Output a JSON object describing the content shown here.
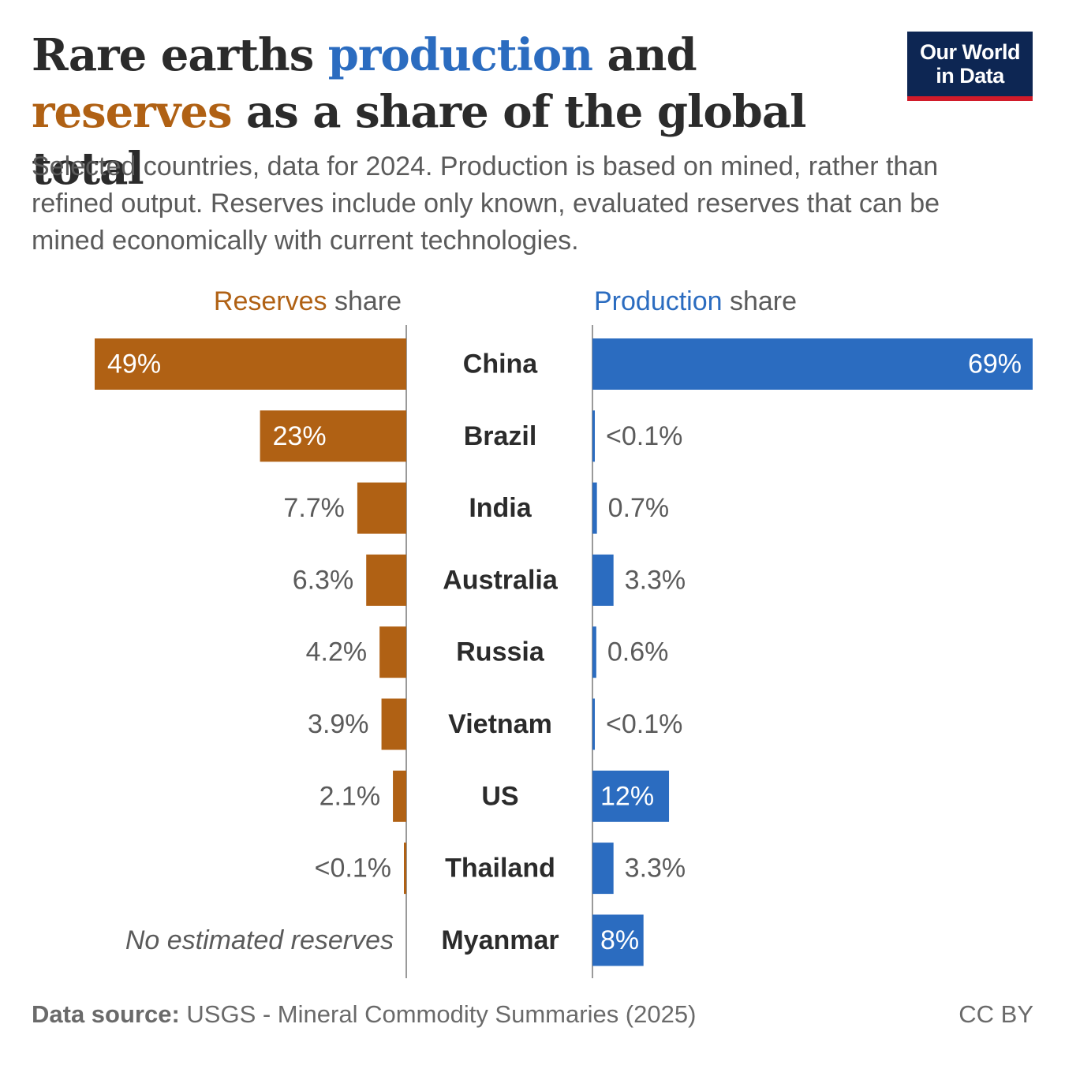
{
  "header": {
    "title_part1": "Rare earths ",
    "title_production": "production",
    "title_part2": " and ",
    "title_reserves": "reserves",
    "title_part3": " as a share of the global total",
    "subtitle": "Selected countries, data for 2024. Production is based on mined, rather than refined output. Reserves include only known, evaluated reserves that can be mined economically with current technologies."
  },
  "logo": {
    "line1": "Our World",
    "line2": "in Data"
  },
  "colors": {
    "reserves": "#b06114",
    "production": "#2b6cc0",
    "text": "#2b2b2b",
    "muted": "#5b5b5b",
    "axis": "#9a9a9a"
  },
  "chart_data": {
    "type": "bar",
    "orientation": "horizontal",
    "layout": "butterfly",
    "categories": [
      "China",
      "Brazil",
      "India",
      "Australia",
      "Russia",
      "Vietnam",
      "US",
      "Thailand",
      "Myanmar"
    ],
    "series": [
      {
        "name": "Reserves",
        "header_suffix": " share",
        "direction": "left",
        "values": [
          49,
          23,
          7.7,
          6.3,
          4.2,
          3.9,
          2.1,
          0.05,
          null
        ],
        "labels": [
          "49%",
          "23%",
          "7.7%",
          "6.3%",
          "4.2%",
          "3.9%",
          "2.1%",
          "<0.1%",
          "No estimated reserves"
        ]
      },
      {
        "name": "Production",
        "header_suffix": " share",
        "direction": "right",
        "values": [
          69,
          0.05,
          0.7,
          3.3,
          0.6,
          0.05,
          12,
          3.3,
          8
        ],
        "labels": [
          "69%",
          "<0.1%",
          "0.7%",
          "3.3%",
          "0.6%",
          "<0.1%",
          "12%",
          "3.3%",
          "8%"
        ]
      }
    ],
    "unit": "%"
  },
  "footer": {
    "source_label": "Data source:",
    "source_text": " USGS - Mineral Commodity Summaries (2025)",
    "license": "CC BY"
  }
}
